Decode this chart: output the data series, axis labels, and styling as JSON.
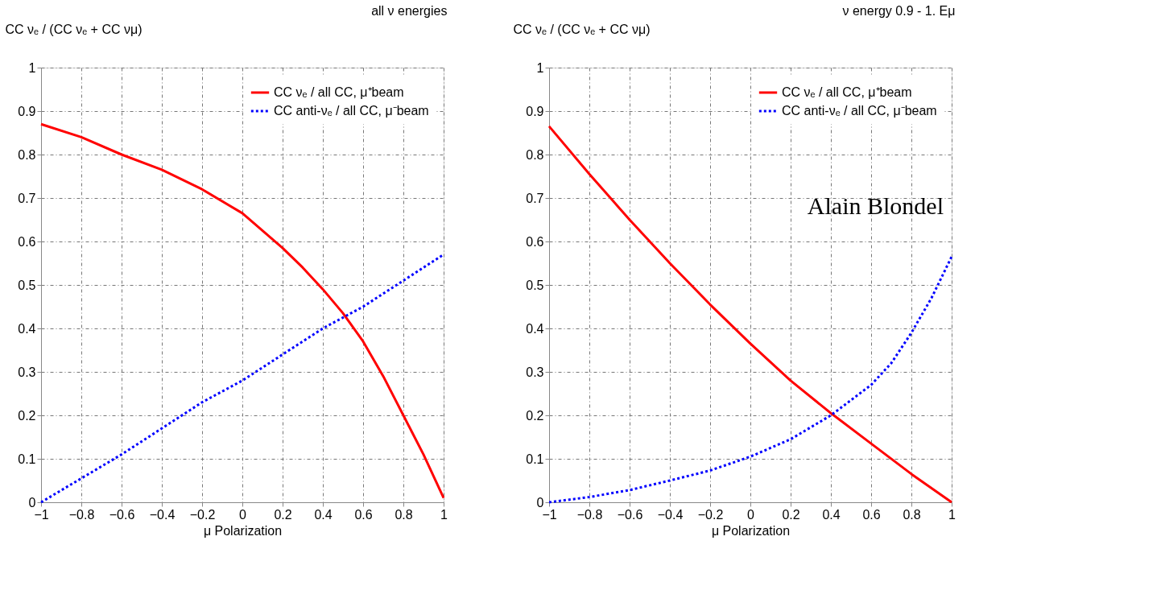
{
  "chart_data": [
    {
      "type": "line",
      "title": "all ν energies",
      "ylabel": "CC νₑ / (CC νₑ + CC νμ)",
      "xlabel": "μ Polarization",
      "xlim": [
        -1,
        1
      ],
      "xticks": [
        -1,
        -0.8,
        -0.6,
        -0.4,
        -0.2,
        0,
        0.2,
        0.4,
        0.6,
        0.8,
        1
      ],
      "ylim": [
        0,
        1
      ],
      "yticks": [
        0,
        0.1,
        0.2,
        0.3,
        0.4,
        0.5,
        0.6,
        0.7,
        0.8,
        0.9,
        1
      ],
      "grid": true,
      "legend": "top right",
      "marker": "none",
      "series": [
        {
          "name": "CC νₑ / all CC, μ⁺beam",
          "color": "#ff0000",
          "line_style": "solid",
          "x": [
            -1,
            -0.8,
            -0.6,
            -0.4,
            -0.2,
            0,
            0.2,
            0.3,
            0.4,
            0.5,
            0.6,
            0.7,
            0.8,
            0.9,
            1
          ],
          "values": [
            0.87,
            0.84,
            0.8,
            0.765,
            0.72,
            0.665,
            0.585,
            0.54,
            0.49,
            0.435,
            0.37,
            0.29,
            0.2,
            0.11,
            0.01
          ]
        },
        {
          "name": "CC anti-νₑ / all CC, μ⁻beam",
          "color": "#0000ff",
          "line_style": "dotted",
          "x": [
            -1,
            -0.6,
            -0.2,
            0,
            0.2,
            0.4,
            0.6,
            1
          ],
          "values": [
            0,
            0.11,
            0.23,
            0.28,
            0.34,
            0.4,
            0.45,
            0.57
          ]
        }
      ]
    },
    {
      "type": "line",
      "title": "ν energy 0.9 - 1. Eμ",
      "ylabel": "CC νₑ / (CC νₑ + CC νμ)",
      "xlabel": "μ Polarization",
      "xlim": [
        -1,
        1
      ],
      "xticks": [
        -1,
        -0.8,
        -0.6,
        -0.4,
        -0.2,
        0,
        0.2,
        0.4,
        0.6,
        0.8,
        1
      ],
      "ylim": [
        0,
        1
      ],
      "yticks": [
        0,
        0.1,
        0.2,
        0.3,
        0.4,
        0.5,
        0.6,
        0.7,
        0.8,
        0.9,
        1
      ],
      "grid": true,
      "legend": "top right",
      "marker": "none",
      "annotations": [
        "Alain Blondel"
      ],
      "series": [
        {
          "name": "CC νₑ / all CC, μ⁺beam",
          "color": "#ff0000",
          "line_style": "solid",
          "x": [
            -1,
            -0.8,
            -0.6,
            -0.4,
            -0.2,
            0,
            0.2,
            0.4,
            0.6,
            0.8,
            1
          ],
          "values": [
            0.865,
            0.755,
            0.65,
            0.55,
            0.455,
            0.365,
            0.28,
            0.205,
            0.135,
            0.065,
            0
          ]
        },
        {
          "name": "CC anti-νₑ / all CC, μ⁻beam",
          "color": "#0000ff",
          "line_style": "dotted",
          "x": [
            -1,
            -0.8,
            -0.6,
            -0.4,
            -0.2,
            0,
            0.2,
            0.4,
            0.5,
            0.6,
            0.7,
            0.8,
            0.9,
            1
          ],
          "values": [
            0,
            0.012,
            0.028,
            0.05,
            0.073,
            0.105,
            0.145,
            0.2,
            0.235,
            0.27,
            0.32,
            0.39,
            0.47,
            0.565
          ]
        }
      ]
    }
  ]
}
